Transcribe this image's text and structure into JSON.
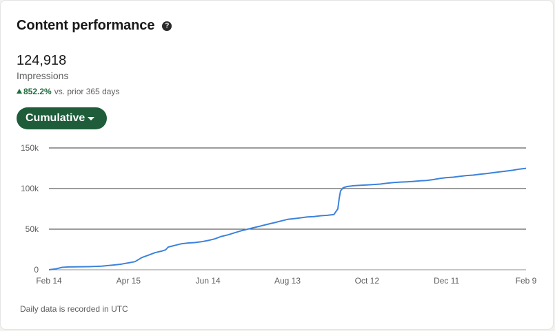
{
  "header": {
    "title": "Content performance",
    "help_icon": "question-circle-icon",
    "help_glyph": "?"
  },
  "metric": {
    "value": "124,918",
    "label": "Impressions",
    "change_percent": "852.2%",
    "change_text": "vs. prior 365 days",
    "change_color": "#1e6b3c"
  },
  "dropdown": {
    "label": "Cumulative"
  },
  "chart_data": {
    "type": "line",
    "y_ticks": [
      0,
      50000,
      100000,
      150000
    ],
    "y_tick_labels": [
      "0",
      "50k",
      "100k",
      "150k"
    ],
    "ylim": [
      0,
      150000
    ],
    "x_tick_labels": [
      "Feb 14",
      "Apr 15",
      "Jun 14",
      "Aug 13",
      "Oct 12",
      "Dec 11",
      "Feb 9"
    ],
    "x_tick_days": [
      0,
      60,
      120,
      180,
      240,
      300,
      360
    ],
    "xlim_days": [
      0,
      360
    ],
    "grid": true,
    "line_color": "#3b82dc",
    "series": [
      {
        "x": [
          0,
          5,
          10,
          15,
          20,
          30,
          40,
          50,
          55,
          60,
          65,
          68,
          70,
          75,
          80,
          85,
          88,
          90,
          95,
          100,
          105,
          110,
          115,
          120,
          125,
          130,
          135,
          140,
          145,
          150,
          155,
          160,
          165,
          170,
          175,
          180,
          185,
          190,
          195,
          200,
          205,
          210,
          215,
          218,
          219,
          220,
          222,
          225,
          230,
          235,
          240,
          245,
          250,
          255,
          260,
          265,
          270,
          275,
          280,
          285,
          290,
          295,
          300,
          305,
          310,
          315,
          320,
          325,
          330,
          335,
          340,
          345,
          350,
          355,
          360
        ],
        "y": [
          0,
          1000,
          3000,
          3500,
          3600,
          3800,
          4500,
          6000,
          7000,
          8500,
          10000,
          13000,
          15000,
          18000,
          21000,
          23000,
          24500,
          28000,
          30000,
          32000,
          33000,
          33500,
          34500,
          36000,
          38000,
          41000,
          43000,
          45500,
          48000,
          50000,
          52000,
          54000,
          56000,
          58000,
          60000,
          62000,
          63000,
          64000,
          65000,
          65500,
          66500,
          67000,
          68000,
          75000,
          88000,
          97000,
          101000,
          102500,
          103500,
          104000,
          104500,
          105000,
          105500,
          106500,
          107500,
          108000,
          108300,
          108800,
          109500,
          110000,
          111000,
          112500,
          113500,
          114000,
          115000,
          116000,
          116500,
          117500,
          118500,
          119500,
          120500,
          121500,
          122500,
          124000,
          124918
        ]
      }
    ]
  },
  "footnote": "Daily data is recorded in UTC"
}
